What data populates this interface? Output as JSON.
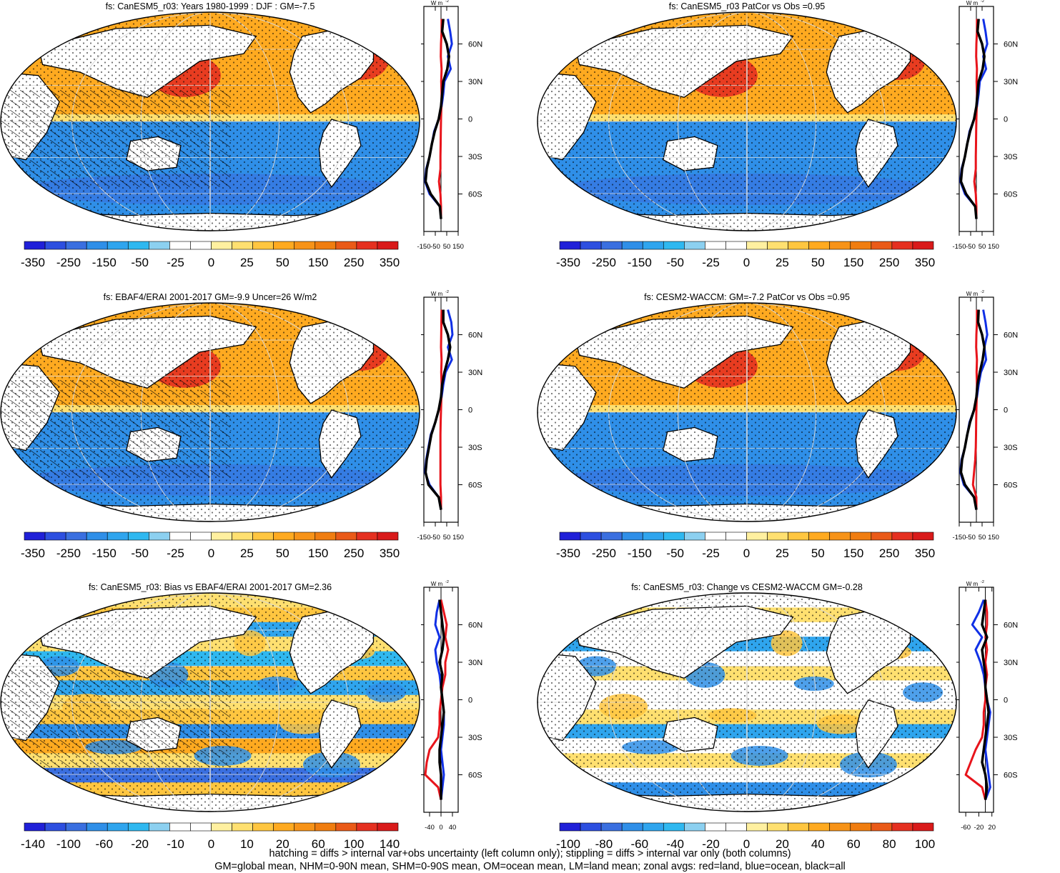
{
  "footer": {
    "line1": "hatching = diffs > internal var+obs uncertainty (left column only); stippling = diffs > internal var only (both columns)",
    "line2": "GM=global mean, NHM=0-90N mean, SHM=0-90S mean, OM=ocean mean, LM=land mean; zonal avgs: red=land, blue=ocean, black=all"
  },
  "colors": {
    "land": "#e8141b",
    "ocean": "#1030e6",
    "all": "#000000"
  },
  "chart_data": [
    {
      "type": "heatmap",
      "panel": "top-left",
      "title": "fs: CanESM5_r03: Years 1980-1999 : DJF : GM=-7.5",
      "colorbar_ticks": [
        "-350",
        "-250",
        "-150",
        "-50",
        "-25",
        "0",
        "25",
        "50",
        "150",
        "250",
        "350"
      ],
      "colorbar_colors": [
        "#2020d8",
        "#2d4fe0",
        "#3a6fe0",
        "#2f8fe8",
        "#2fa5ee",
        "#2fb8f0",
        "#8cd0f0",
        "#ffffff",
        "#ffffff",
        "#fff0a0",
        "#ffe070",
        "#ffc640",
        "#ffaa20",
        "#f79318",
        "#f07d10",
        "#ea5a18",
        "#e53020",
        "#d91a1a"
      ],
      "profile": {
        "unit": "W m-2",
        "xticks": [
          "-150",
          "-50",
          "50",
          "150"
        ],
        "xlim": [
          -150,
          150
        ],
        "lat": [
          80,
          70,
          60,
          50,
          40,
          30,
          20,
          10,
          0,
          -10,
          -20,
          -30,
          -40,
          -50,
          -60,
          -70,
          -80
        ],
        "land": [
          5,
          5,
          0,
          -2,
          5,
          2,
          5,
          3,
          0,
          -2,
          -3,
          -5,
          -5,
          -18,
          -5,
          0,
          0
        ],
        "ocean": [
          60,
          80,
          95,
          60,
          85,
          30,
          20,
          5,
          -20,
          -60,
          -80,
          -100,
          -130,
          -140,
          -100,
          -10,
          0
        ],
        "all": [
          20,
          10,
          50,
          70,
          55,
          20,
          10,
          0,
          -20,
          -55,
          -80,
          -100,
          -125,
          -135,
          -90,
          -10,
          0
        ]
      },
      "ylabels": [
        "60N",
        "30N",
        "0",
        "30S",
        "60S"
      ]
    },
    {
      "type": "heatmap",
      "panel": "top-right",
      "title": "fs: CanESM5_r03 PatCor vs Obs =0.95",
      "colorbar_ticks": [
        "-350",
        "-250",
        "-150",
        "-50",
        "-25",
        "0",
        "25",
        "50",
        "150",
        "250",
        "350"
      ],
      "colorbar_colors": [
        "#2020d8",
        "#2d4fe0",
        "#3a6fe0",
        "#2f8fe8",
        "#2fa5ee",
        "#2fb8f0",
        "#8cd0f0",
        "#ffffff",
        "#ffffff",
        "#fff0a0",
        "#ffe070",
        "#ffc640",
        "#ffaa20",
        "#f79318",
        "#f07d10",
        "#ea5a18",
        "#e53020",
        "#d91a1a"
      ],
      "profile": {
        "unit": "W m-2",
        "xticks": [
          "-150",
          "-50",
          "50",
          "150"
        ],
        "xlim": [
          -150,
          150
        ],
        "lat": [
          80,
          70,
          60,
          50,
          40,
          30,
          20,
          10,
          0,
          -10,
          -20,
          -30,
          -40,
          -50,
          -60,
          -70,
          -80
        ],
        "land": [
          5,
          5,
          0,
          -2,
          5,
          2,
          5,
          3,
          0,
          -2,
          -3,
          -5,
          -5,
          -18,
          -5,
          0,
          0
        ],
        "ocean": [
          60,
          80,
          95,
          60,
          85,
          30,
          20,
          5,
          -20,
          -60,
          -80,
          -100,
          -130,
          -140,
          -100,
          -10,
          0
        ],
        "all": [
          20,
          10,
          50,
          70,
          55,
          20,
          10,
          0,
          -20,
          -55,
          -80,
          -100,
          -125,
          -135,
          -90,
          -10,
          0
        ]
      },
      "ylabels": [
        "60N",
        "30N",
        "0",
        "30S",
        "60S"
      ]
    },
    {
      "type": "heatmap",
      "panel": "middle-left",
      "title": "fs: EBAF4/ERAI 2001-2017 GM=-9.9 Uncer=26 W/m2",
      "colorbar_ticks": [
        "-350",
        "-250",
        "-150",
        "-50",
        "-25",
        "0",
        "25",
        "50",
        "150",
        "250",
        "350"
      ],
      "colorbar_colors": [
        "#2020d8",
        "#2d4fe0",
        "#3a6fe0",
        "#2f8fe8",
        "#2fa5ee",
        "#2fb8f0",
        "#8cd0f0",
        "#ffffff",
        "#ffffff",
        "#fff0a0",
        "#ffe070",
        "#ffc640",
        "#ffaa20",
        "#f79318",
        "#f07d10",
        "#ea5a18",
        "#e53020",
        "#d91a1a"
      ],
      "profile": {
        "unit": "W m-2",
        "xticks": [
          "-150",
          "-50",
          "50",
          "150"
        ],
        "xlim": [
          -150,
          150
        ],
        "lat": [
          80,
          70,
          60,
          50,
          40,
          30,
          20,
          10,
          0,
          -10,
          -20,
          -30,
          -40,
          -50,
          -60,
          -70,
          -80
        ],
        "land": [
          5,
          3,
          2,
          0,
          5,
          2,
          5,
          3,
          0,
          -3,
          -5,
          -5,
          -5,
          -5,
          -5,
          0,
          0
        ],
        "ocean": [
          60,
          90,
          100,
          60,
          95,
          40,
          20,
          5,
          -20,
          -50,
          -90,
          -110,
          -130,
          -140,
          -100,
          -20,
          0
        ],
        "all": [
          20,
          20,
          60,
          80,
          60,
          30,
          10,
          0,
          -20,
          -50,
          -85,
          -105,
          -125,
          -135,
          -110,
          -20,
          0
        ]
      },
      "ylabels": [
        "60N",
        "30N",
        "0",
        "30S",
        "60S"
      ]
    },
    {
      "type": "heatmap",
      "panel": "middle-right",
      "title": "fs: CESM2-WACCM: GM=-7.2 PatCor vs Obs =0.95",
      "colorbar_ticks": [
        "-350",
        "-250",
        "-150",
        "-50",
        "-25",
        "0",
        "25",
        "50",
        "150",
        "250",
        "350"
      ],
      "colorbar_colors": [
        "#2020d8",
        "#2d4fe0",
        "#3a6fe0",
        "#2f8fe8",
        "#2fa5ee",
        "#2fb8f0",
        "#8cd0f0",
        "#ffffff",
        "#ffffff",
        "#fff0a0",
        "#ffe070",
        "#ffc640",
        "#ffaa20",
        "#f79318",
        "#f07d10",
        "#ea5a18",
        "#e53020",
        "#d91a1a"
      ],
      "profile": {
        "unit": "W m-2",
        "xticks": [
          "-150",
          "-50",
          "50",
          "150"
        ],
        "xlim": [
          -150,
          150
        ],
        "lat": [
          80,
          70,
          60,
          50,
          40,
          30,
          20,
          10,
          0,
          -10,
          -20,
          -30,
          -40,
          -50,
          -60,
          -70,
          -80
        ],
        "land": [
          5,
          5,
          0,
          -2,
          5,
          2,
          5,
          3,
          0,
          -2,
          -3,
          -5,
          -10,
          -20,
          -30,
          0,
          0
        ],
        "ocean": [
          60,
          80,
          95,
          70,
          85,
          40,
          20,
          5,
          -20,
          -60,
          -80,
          -100,
          -130,
          -140,
          -110,
          -20,
          0
        ],
        "all": [
          20,
          15,
          50,
          70,
          55,
          30,
          10,
          0,
          -20,
          -55,
          -80,
          -100,
          -125,
          -135,
          -100,
          -20,
          0
        ]
      },
      "ylabels": [
        "60N",
        "30N",
        "0",
        "30S",
        "60S"
      ]
    },
    {
      "type": "heatmap",
      "panel": "bottom-left",
      "title": "fs: CanESM5_r03: Bias vs EBAF4/ERAI 2001-2017 GM=2.36",
      "colorbar_ticks": [
        "-140",
        "-100",
        "-60",
        "-20",
        "-10",
        "0",
        "10",
        "20",
        "60",
        "100",
        "140"
      ],
      "colorbar_colors": [
        "#2020d8",
        "#2d4fe0",
        "#3a6fe0",
        "#2f8fe8",
        "#2fa5ee",
        "#2fb8f0",
        "#8cd0f0",
        "#ffffff",
        "#ffffff",
        "#fff0a0",
        "#ffe070",
        "#ffc640",
        "#ffaa20",
        "#f79318",
        "#f07d10",
        "#ea5a18",
        "#e53020",
        "#d91a1a"
      ],
      "profile": {
        "unit": "W m-2",
        "xticks": [
          "-40",
          "0",
          "40"
        ],
        "xlim": [
          -60,
          60
        ],
        "lat": [
          80,
          70,
          60,
          50,
          40,
          30,
          20,
          10,
          0,
          -10,
          -20,
          -30,
          -40,
          -50,
          -60,
          -70,
          -80
        ],
        "land": [
          0,
          10,
          20,
          15,
          25,
          15,
          15,
          5,
          0,
          -5,
          -5,
          -10,
          -40,
          -50,
          -55,
          -10,
          0
        ],
        "ocean": [
          -5,
          -15,
          -20,
          -5,
          -20,
          -15,
          -5,
          0,
          5,
          10,
          10,
          5,
          0,
          5,
          10,
          5,
          0
        ],
        "all": [
          -5,
          0,
          5,
          10,
          5,
          -5,
          5,
          0,
          5,
          10,
          5,
          0,
          -5,
          -5,
          0,
          0,
          0
        ]
      },
      "ylabels": [
        "60N",
        "30N",
        "0",
        "30S",
        "60S"
      ]
    },
    {
      "type": "heatmap",
      "panel": "bottom-right",
      "title": "fs: CanESM5_r03: Change vs CESM2-WACCM GM=-0.28",
      "colorbar_ticks": [
        "-100",
        "-80",
        "-60",
        "-40",
        "-20",
        "0",
        "20",
        "40",
        "60",
        "80",
        "100"
      ],
      "colorbar_colors": [
        "#2020d8",
        "#2d4fe0",
        "#3a6fe0",
        "#2f8fe8",
        "#2fa5ee",
        "#2fb8f0",
        "#8cd0f0",
        "#ffffff",
        "#ffffff",
        "#fff0a0",
        "#ffe070",
        "#ffc640",
        "#ffaa20",
        "#f79318",
        "#f07d10",
        "#ea5a18",
        "#e53020",
        "#d91a1a"
      ],
      "profile": {
        "unit": "W m-2",
        "xticks": [
          "-60",
          "-20",
          "20"
        ],
        "xlim": [
          -80,
          25
        ],
        "lat": [
          80,
          70,
          60,
          50,
          40,
          30,
          20,
          10,
          0,
          -10,
          -20,
          -30,
          -40,
          -50,
          -60,
          -70,
          -80
        ],
        "land": [
          0,
          5,
          5,
          0,
          5,
          0,
          5,
          0,
          0,
          -5,
          -5,
          -10,
          -30,
          -45,
          -60,
          -10,
          0
        ],
        "ocean": [
          -5,
          -20,
          -40,
          -10,
          -30,
          -15,
          -5,
          0,
          5,
          15,
          10,
          5,
          0,
          5,
          10,
          15,
          0
        ],
        "all": [
          0,
          -5,
          -10,
          5,
          -10,
          -5,
          0,
          0,
          5,
          10,
          5,
          0,
          -5,
          -10,
          0,
          5,
          0
        ]
      },
      "ylabels": [
        "60N",
        "30N",
        "0",
        "30S",
        "60S"
      ]
    }
  ]
}
